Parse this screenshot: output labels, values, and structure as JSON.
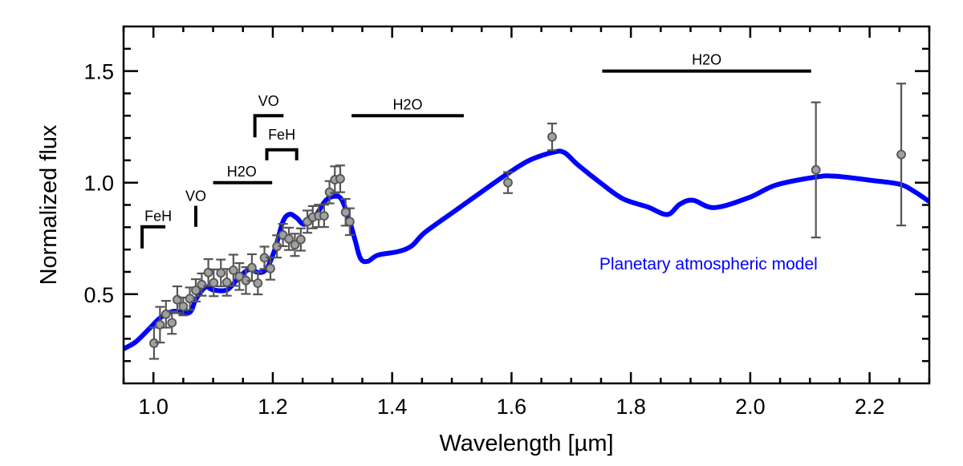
{
  "chart_data": {
    "type": "scatter",
    "xlabel": "Wavelength [µm]",
    "ylabel": "Normalized flux",
    "xlim": [
      0.95,
      2.3
    ],
    "ylim": [
      0.1,
      1.7
    ],
    "x_ticks": [
      "1.0",
      "1.2",
      "1.4",
      "1.6",
      "1.8",
      "2.0",
      "2.2"
    ],
    "x_tick_values": [
      1.0,
      1.2,
      1.4,
      1.6,
      1.8,
      2.0,
      2.2
    ],
    "x_minor_step": 0.05,
    "y_ticks": [
      "0.5",
      "1.0",
      "1.5"
    ],
    "y_tick_values": [
      0.5,
      1.0,
      1.5
    ],
    "y_minor_step": 0.1,
    "grid": false,
    "colors": {
      "model": "#0000ff",
      "points": "#a0a0a0",
      "errorbars": "#555555",
      "annotations": "#000000"
    },
    "model": {
      "label": "Planetary atmospheric model",
      "label_position": [
        1.93,
        0.64
      ],
      "x": [
        0.95,
        0.97,
        0.993,
        1.011,
        1.033,
        1.06,
        1.071,
        1.087,
        1.1,
        1.123,
        1.141,
        1.159,
        1.177,
        1.19,
        1.204,
        1.217,
        1.228,
        1.24,
        1.253,
        1.271,
        1.289,
        1.305,
        1.316,
        1.329,
        1.338,
        1.347,
        1.359,
        1.376,
        1.41,
        1.433,
        1.455,
        1.505,
        1.549,
        1.594,
        1.63,
        1.671,
        1.689,
        1.711,
        1.752,
        1.787,
        1.828,
        1.861,
        1.882,
        1.904,
        1.94,
        1.998,
        2.043,
        2.11,
        2.142,
        2.2,
        2.25,
        2.275,
        2.3
      ],
      "y": [
        0.255,
        0.285,
        0.345,
        0.393,
        0.423,
        0.417,
        0.477,
        0.531,
        0.519,
        0.519,
        0.567,
        0.609,
        0.597,
        0.615,
        0.705,
        0.825,
        0.858,
        0.842,
        0.813,
        0.849,
        0.921,
        0.939,
        0.921,
        0.825,
        0.741,
        0.66,
        0.647,
        0.675,
        0.691,
        0.717,
        0.777,
        0.873,
        0.957,
        1.041,
        1.1,
        1.137,
        1.134,
        1.08,
        0.993,
        0.927,
        0.891,
        0.857,
        0.903,
        0.921,
        0.888,
        0.933,
        0.989,
        1.025,
        1.029,
        1.011,
        0.993,
        0.96,
        0.915
      ]
    },
    "points": [
      [
        1.001,
        0.28,
        0.07
      ],
      [
        1.011,
        0.363,
        0.08
      ],
      [
        1.021,
        0.41,
        0.06
      ],
      [
        1.031,
        0.372,
        0.05
      ],
      [
        1.04,
        0.475,
        0.06
      ],
      [
        1.05,
        0.445,
        0.04
      ],
      [
        1.061,
        0.48,
        0.05
      ],
      [
        1.071,
        0.517,
        0.05
      ],
      [
        1.081,
        0.543,
        0.05
      ],
      [
        1.092,
        0.597,
        0.06
      ],
      [
        1.101,
        0.551,
        0.06
      ],
      [
        1.113,
        0.595,
        0.06
      ],
      [
        1.123,
        0.553,
        0.06
      ],
      [
        1.134,
        0.607,
        0.07
      ],
      [
        1.144,
        0.579,
        0.06
      ],
      [
        1.155,
        0.561,
        0.06
      ],
      [
        1.165,
        0.619,
        0.06
      ],
      [
        1.175,
        0.549,
        0.05
      ],
      [
        1.186,
        0.663,
        0.05
      ],
      [
        1.196,
        0.615,
        0.05
      ],
      [
        1.207,
        0.714,
        0.05
      ],
      [
        1.217,
        0.765,
        0.05
      ],
      [
        1.227,
        0.748,
        0.05
      ],
      [
        1.237,
        0.721,
        0.05
      ],
      [
        1.247,
        0.745,
        0.05
      ],
      [
        1.258,
        0.825,
        0.05
      ],
      [
        1.267,
        0.845,
        0.05
      ],
      [
        1.277,
        0.851,
        0.05
      ],
      [
        1.286,
        0.851,
        0.05
      ],
      [
        1.295,
        0.957,
        0.05
      ],
      [
        1.304,
        1.013,
        0.06
      ],
      [
        1.313,
        1.017,
        0.06
      ],
      [
        1.322,
        0.867,
        0.06
      ],
      [
        1.329,
        0.825,
        0.06
      ],
      [
        1.594,
        1.0,
        0.047
      ],
      [
        1.668,
        1.205,
        0.06
      ],
      [
        2.11,
        1.057,
        0.303
      ],
      [
        2.253,
        1.126,
        0.318
      ]
    ],
    "annotations": [
      {
        "label": "FeH",
        "type": "bracket-left",
        "x": [
          0.981,
          1.02
        ],
        "y": [
          0.705,
          0.802
        ],
        "label_at": [
          1.008,
          0.85
        ]
      },
      {
        "label": "VO",
        "type": "vline",
        "x": [
          1.071,
          1.071
        ],
        "y": [
          0.802,
          0.896
        ],
        "label_at": [
          1.071,
          0.94
        ]
      },
      {
        "label": "H2O",
        "type": "hline",
        "x": [
          1.1,
          1.199
        ],
        "y": [
          1.0,
          1.0
        ],
        "label_at": [
          1.148,
          1.05
        ]
      },
      {
        "label": "VO",
        "type": "bracket-left",
        "x": [
          1.17,
          1.218
        ],
        "y": [
          1.203,
          1.3
        ],
        "label_at": [
          1.193,
          1.365
        ]
      },
      {
        "label": "FeH",
        "type": "bracket-down",
        "x": [
          1.19,
          1.24
        ],
        "y": [
          1.1,
          1.147
        ],
        "label_at": [
          1.215,
          1.215
        ]
      },
      {
        "label": "H2O",
        "type": "hline",
        "x": [
          1.332,
          1.52
        ],
        "y": [
          1.3,
          1.3
        ],
        "label_at": [
          1.426,
          1.35
        ]
      },
      {
        "label": "H2O",
        "type": "hline",
        "x": [
          1.752,
          2.102
        ],
        "y": [
          1.5,
          1.5
        ],
        "label_at": [
          1.927,
          1.55
        ]
      }
    ]
  }
}
